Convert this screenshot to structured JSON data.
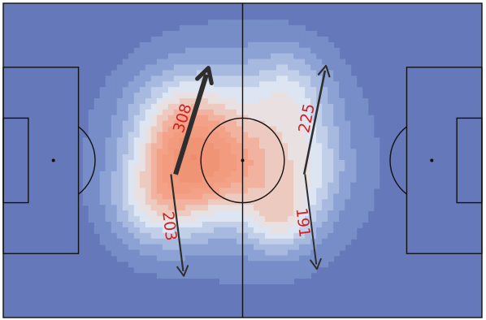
{
  "chart_data": {
    "type": "heatmap",
    "title": "",
    "xlabel": "",
    "ylabel": "",
    "pitch": {
      "length": 105,
      "width": 68
    },
    "colors": {
      "background": "#6578b9",
      "low": "#7d96cf",
      "mid": "#e7eef5",
      "high": "#f4a58a",
      "peak": "#ee8d6e",
      "lines": "#111111",
      "arrow": "#2e2e2e",
      "label": "#d42020"
    },
    "density": [
      {
        "x": 49,
        "y": 36,
        "sx": 10,
        "sy": 7,
        "w": 1.0
      },
      {
        "x": 38,
        "y": 34,
        "sx": 7,
        "sy": 9,
        "w": 0.85
      },
      {
        "x": 33,
        "y": 44,
        "sx": 7,
        "sy": 7,
        "w": 0.7
      },
      {
        "x": 41,
        "y": 24,
        "sx": 8,
        "sy": 7,
        "w": 0.6
      },
      {
        "x": 61,
        "y": 47,
        "sx": 5,
        "sy": 5,
        "w": 0.85
      },
      {
        "x": 63,
        "y": 20,
        "sx": 6,
        "sy": 7,
        "w": 0.65
      },
      {
        "x": 68,
        "y": 36,
        "sx": 5,
        "sy": 7,
        "w": 0.45
      },
      {
        "x": 52,
        "y": 28,
        "sx": 14,
        "sy": 14,
        "w": 0.45
      },
      {
        "x": 45,
        "y": 30,
        "sx": 20,
        "sy": 16,
        "w": 0.35
      },
      {
        "x": 58,
        "y": 40,
        "sx": 18,
        "sy": 16,
        "w": 0.3
      }
    ],
    "arrows": [
      {
        "label": "308",
        "x1": 37.8,
        "y1": 37,
        "x2": 45,
        "y2": 14,
        "thickness": 6
      },
      {
        "label": "203",
        "x1": 36.8,
        "y1": 37,
        "x2": 39.6,
        "y2": 59,
        "thickness": 2.2
      },
      {
        "label": "225",
        "x1": 66,
        "y1": 37,
        "x2": 70.8,
        "y2": 13.5,
        "thickness": 2.6
      },
      {
        "label": "191",
        "x1": 66.2,
        "y1": 37,
        "x2": 68.8,
        "y2": 57.5,
        "thickness": 2.0
      }
    ]
  }
}
